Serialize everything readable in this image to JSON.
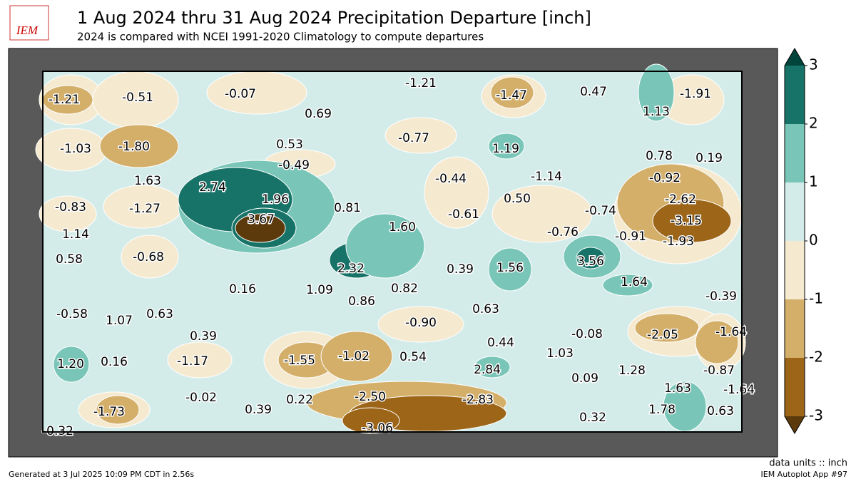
{
  "header": {
    "logo": "IEM",
    "title": "1 Aug 2024 thru 31 Aug 2024 Precipitation Departure [inch]",
    "subtitle": "2024 is compared with NCEI 1991-2020 Climatology to compute departures"
  },
  "map_labels": [
    "-1.21",
    "-0.51",
    "-0.07",
    "0.69",
    "-1.21",
    "-1.47",
    "0.47",
    "1.13",
    "-1.91",
    "-1.03",
    "-1.80",
    "0.53",
    "-0.49",
    "-0.77",
    "1.19",
    "0.78",
    "0.19",
    "1.63",
    "2.74",
    "-0.44",
    "-1.14",
    "-0.92",
    "-0.83",
    "-1.27",
    "1.96",
    "0.81",
    "0.50",
    "-2.62",
    "-0.61",
    "-0.74",
    "3.67",
    "1.60",
    "-3.15",
    "1.14",
    "-0.76",
    "-0.91",
    "-1.93",
    "0.58",
    "-0.68",
    "2.32",
    "0.39",
    "1.56",
    "3.56",
    "1.64",
    "0.16",
    "1.09",
    "0.82",
    "-0.39",
    "0.86",
    "0.63",
    "-0.58",
    "1.07",
    "0.63",
    "-0.90",
    "-0.08",
    "-2.05",
    "-1.64",
    "0.39",
    "0.44",
    "1.03",
    "1.20",
    "0.16",
    "-1.17",
    "-1.55",
    "-1.02",
    "0.54",
    "2.84",
    "1.28",
    "-0.87",
    "0.09",
    "1.63",
    "-1.64",
    "-0.02",
    "-2.50",
    "-2.83",
    "0.22",
    "0.39",
    "-1.73",
    "1.78",
    "0.63",
    "0.32",
    "-0.32",
    "-3.06"
  ],
  "colorbar": {
    "ticks": [
      -3,
      -2,
      -1,
      0,
      1,
      2,
      3
    ],
    "colors": [
      "#9c6518",
      "#d4af6a",
      "#f5e9cf",
      "#d3ecea",
      "#79c6b8",
      "#177367"
    ],
    "under": "#5c3a0c",
    "over": "#01443c"
  },
  "footer": {
    "units": "data units :: inch",
    "generated": "Generated at 3 Jul 2025 10:09 PM CDT in 2.56s",
    "app": "IEM Autoplot App #97"
  }
}
